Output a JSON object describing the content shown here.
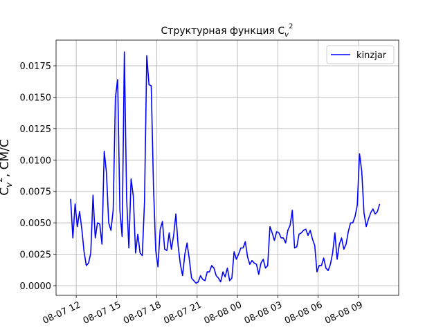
{
  "chart_data": {
    "type": "line",
    "title": {
      "text": "Структурная функция C",
      "sub": "v",
      "sup": "2"
    },
    "ylabel": {
      "text": "C",
      "sub": "v",
      "sup": "2",
      "rest": ", СМ/С"
    },
    "x": [
      "08-07 11:35",
      "08-07 11:45",
      "08-07 11:55",
      "08-07 12:05",
      "08-07 12:15",
      "08-07 12:25",
      "08-07 12:35",
      "08-07 12:45",
      "08-07 12:55",
      "08-07 13:05",
      "08-07 13:15",
      "08-07 13:25",
      "08-07 13:35",
      "08-07 13:45",
      "08-07 13:55",
      "08-07 14:05",
      "08-07 14:15",
      "08-07 14:25",
      "08-07 14:35",
      "08-07 14:45",
      "08-07 14:55",
      "08-07 15:05",
      "08-07 15:15",
      "08-07 15:25",
      "08-07 15:35",
      "08-07 15:45",
      "08-07 15:55",
      "08-07 16:05",
      "08-07 16:15",
      "08-07 16:25",
      "08-07 16:35",
      "08-07 16:45",
      "08-07 16:55",
      "08-07 17:05",
      "08-07 17:15",
      "08-07 17:25",
      "08-07 17:35",
      "08-07 17:45",
      "08-07 17:55",
      "08-07 18:05",
      "08-07 18:15",
      "08-07 18:25",
      "08-07 18:35",
      "08-07 18:45",
      "08-07 18:55",
      "08-07 19:05",
      "08-07 19:15",
      "08-07 19:25",
      "08-07 19:35",
      "08-07 19:45",
      "08-07 19:55",
      "08-07 20:05",
      "08-07 20:15",
      "08-07 20:25",
      "08-07 20:35",
      "08-07 20:45",
      "08-07 20:55",
      "08-07 21:05",
      "08-07 21:15",
      "08-07 21:25",
      "08-07 21:35",
      "08-07 21:45",
      "08-07 21:55",
      "08-07 22:05",
      "08-07 22:15",
      "08-07 22:25",
      "08-07 22:35",
      "08-07 22:45",
      "08-07 22:55",
      "08-07 23:05",
      "08-07 23:15",
      "08-07 23:25",
      "08-07 23:35",
      "08-07 23:45",
      "08-07 23:55",
      "08-08 00:05",
      "08-08 00:15",
      "08-08 00:25",
      "08-08 00:35",
      "08-08 00:45",
      "08-08 00:55",
      "08-08 01:05",
      "08-08 01:15",
      "08-08 01:25",
      "08-08 01:35",
      "08-08 01:45",
      "08-08 01:55",
      "08-08 02:05",
      "08-08 02:15",
      "08-08 02:25",
      "08-08 02:35",
      "08-08 02:45",
      "08-08 02:55",
      "08-08 03:05",
      "08-08 03:15",
      "08-08 03:25",
      "08-08 03:35",
      "08-08 03:45",
      "08-08 03:55",
      "08-08 04:05",
      "08-08 04:15",
      "08-08 04:25",
      "08-08 04:35",
      "08-08 04:45",
      "08-08 04:55",
      "08-08 05:05",
      "08-08 05:15",
      "08-08 05:25",
      "08-08 05:35",
      "08-08 05:45",
      "08-08 05:55",
      "08-08 06:05",
      "08-08 06:15",
      "08-08 06:25",
      "08-08 06:35",
      "08-08 06:45",
      "08-08 06:55",
      "08-08 07:05",
      "08-08 07:15",
      "08-08 07:25",
      "08-08 07:35",
      "08-08 07:45",
      "08-08 07:55",
      "08-08 08:05",
      "08-08 08:15",
      "08-08 08:25",
      "08-08 08:35",
      "08-08 08:45",
      "08-08 08:55",
      "08-08 09:05",
      "08-08 09:15",
      "08-08 09:25",
      "08-08 09:35",
      "08-08 09:45",
      "08-08 09:55",
      "08-08 10:05",
      "08-08 10:15",
      "08-08 10:25",
      "08-08 10:35"
    ],
    "series": [
      {
        "name": "kinzjar",
        "color": "#0000ff",
        "values": [
          0.0069,
          0.0038,
          0.0065,
          0.0047,
          0.0059,
          0.0045,
          0.0027,
          0.0016,
          0.0018,
          0.0026,
          0.0072,
          0.0038,
          0.005,
          0.0049,
          0.0033,
          0.0107,
          0.009,
          0.005,
          0.0044,
          0.006,
          0.015,
          0.0164,
          0.006,
          0.0039,
          0.0186,
          0.007,
          0.003,
          0.0085,
          0.0071,
          0.0026,
          0.0041,
          0.0026,
          0.0024,
          0.0067,
          0.0183,
          0.016,
          0.0159,
          0.0079,
          0.0028,
          0.0015,
          0.0045,
          0.0051,
          0.0029,
          0.0028,
          0.0042,
          0.0029,
          0.004,
          0.0057,
          0.0032,
          0.0017,
          0.0008,
          0.0025,
          0.0034,
          0.0021,
          0.0006,
          0.0004,
          0.0002,
          0.0003,
          0.0008,
          0.0005,
          0.0004,
          0.0011,
          0.0011,
          0.0016,
          0.0014,
          0.0008,
          0.0006,
          0.0003,
          0.0011,
          0.0007,
          0.0014,
          0.0004,
          0.0006,
          0.0027,
          0.0021,
          0.0025,
          0.003,
          0.003,
          0.0035,
          0.0023,
          0.0017,
          0.002,
          0.0018,
          0.0017,
          0.0009,
          0.0018,
          0.0021,
          0.0014,
          0.0016,
          0.0047,
          0.0042,
          0.0036,
          0.0043,
          0.0042,
          0.0038,
          0.0038,
          0.0034,
          0.0044,
          0.0048,
          0.006,
          0.003,
          0.0031,
          0.0041,
          0.0042,
          0.0044,
          0.0045,
          0.004,
          0.0044,
          0.0037,
          0.0032,
          0.0011,
          0.0016,
          0.0016,
          0.0022,
          0.0014,
          0.0012,
          0.0017,
          0.0026,
          0.0042,
          0.0021,
          0.0033,
          0.0038,
          0.0029,
          0.0033,
          0.0043,
          0.005,
          0.005,
          0.0055,
          0.0064,
          0.0105,
          0.0091,
          0.0058,
          0.0047,
          0.0053,
          0.0058,
          0.0061,
          0.0057,
          0.0059,
          0.0065
        ]
      }
    ],
    "xlim": [
      "08-07 10:30",
      "08-08 12:00"
    ],
    "xticks": [
      {
        "value": "08-07 12:00",
        "label": "08-07 12"
      },
      {
        "value": "08-07 15:00",
        "label": "08-07 15"
      },
      {
        "value": "08-07 18:00",
        "label": "08-07 18"
      },
      {
        "value": "08-07 21:00",
        "label": "08-07 21"
      },
      {
        "value": "08-08 00:00",
        "label": "08-08 00"
      },
      {
        "value": "08-08 03:00",
        "label": "08-08 03"
      },
      {
        "value": "08-08 06:00",
        "label": "08-08 06"
      },
      {
        "value": "08-08 09:00",
        "label": "08-08 09"
      }
    ],
    "ylim": [
      -0.00077,
      0.01954
    ],
    "yticks": [
      {
        "value": 0,
        "label": "0.0000"
      },
      {
        "value": 0.0025,
        "label": "0.0025"
      },
      {
        "value": 0.005,
        "label": "0.0050"
      },
      {
        "value": 0.0075,
        "label": "0.0075"
      },
      {
        "value": 0.01,
        "label": "0.0100"
      },
      {
        "value": 0.0125,
        "label": "0.0125"
      },
      {
        "value": 0.015,
        "label": "0.0150"
      },
      {
        "value": 0.0175,
        "label": "0.0175"
      }
    ],
    "grid": true,
    "legend": "upper right"
  }
}
